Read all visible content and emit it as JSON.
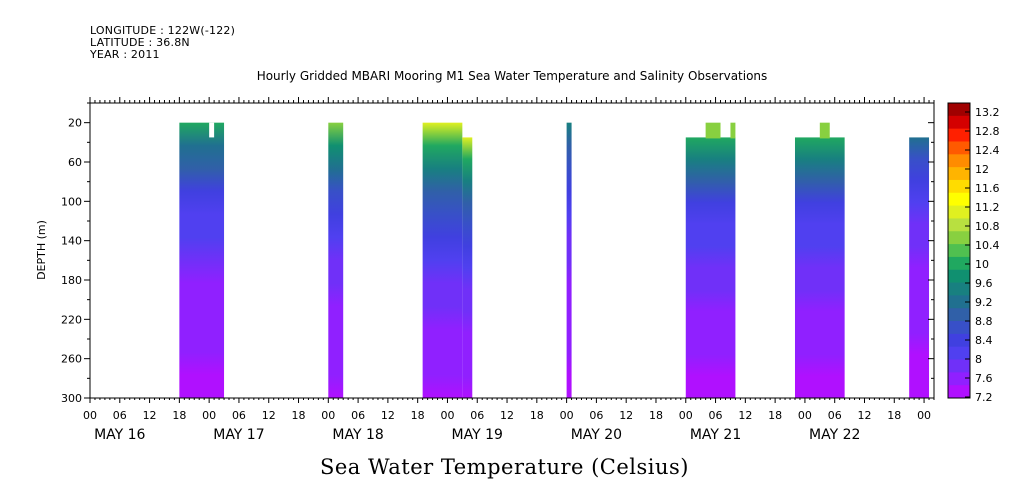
{
  "header": {
    "longitude": "LONGITUDE : 122W(-122)",
    "latitude": "LATITUDE : 36.8N",
    "year": "YEAR : 2011"
  },
  "chart_data": {
    "type": "heatmap",
    "title": "Hourly Gridded MBARI Mooring M1 Sea Water Temperature and Salinity Observations",
    "xlabel": "Sea Water Temperature (Celsius)",
    "ylabel": "DEPTH (m)",
    "xlim_hours": [
      0,
      170
    ],
    "ylim": [
      300,
      0
    ],
    "x_hour_ticks": [
      "00",
      "06",
      "12",
      "18",
      "00",
      "06",
      "12",
      "18",
      "00",
      "06",
      "12",
      "18",
      "00",
      "06",
      "12",
      "18",
      "00",
      "06",
      "12",
      "18",
      "00",
      "06",
      "12",
      "18",
      "00",
      "06",
      "12",
      "18",
      "00"
    ],
    "day_labels": [
      "MAY 16",
      "MAY 17",
      "MAY 18",
      "MAY 19",
      "MAY 20",
      "MAY 21",
      "MAY 22"
    ],
    "y_ticks": [
      "20",
      "60",
      "100",
      "140",
      "180",
      "220",
      "260",
      "300"
    ],
    "colorbar": {
      "levels": [
        "13.2",
        "12.8",
        "12.4",
        "12",
        "11.6",
        "11.2",
        "10.8",
        "10.4",
        "10",
        "9.6",
        "9.2",
        "8.8",
        "8.4",
        "8",
        "7.6",
        "7.2"
      ],
      "colors": [
        "#a00000",
        "#d40000",
        "#ff2000",
        "#ff5a00",
        "#ff8c00",
        "#ffb400",
        "#ffdc00",
        "#ffff00",
        "#e0f020",
        "#b8e040",
        "#88d040",
        "#50c050",
        "#20a860",
        "#109070",
        "#188080",
        "#207090",
        "#3060a8",
        "#3850c8",
        "#4040e0",
        "#5040f0",
        "#7030f8",
        "#9020ff",
        "#b010ff"
      ],
      "range": [
        7.2,
        13.4
      ]
    },
    "observation_blocks": [
      {
        "start_hour": 18,
        "end_hour": 27,
        "top_depth": 20,
        "notch": [
          24,
          25,
          35
        ],
        "surface_temp": 9.9
      },
      {
        "start_hour": 48,
        "end_hour": 51,
        "top_depth": 20,
        "surface_temp": 10.6
      },
      {
        "start_hour": 67,
        "end_hour": 77,
        "top_depth": 20,
        "step_after_hour": 75,
        "step_depth": 35,
        "surface_temp": 11.0
      },
      {
        "start_hour": 96,
        "end_hour": 97,
        "top_depth": 20,
        "surface_temp": 9.6
      },
      {
        "start_hour": 120,
        "end_hour": 130,
        "top_depth": 35,
        "raised": [
          [
            124,
            127,
            20
          ],
          [
            129,
            130,
            20
          ]
        ],
        "surface_temp": 10.0
      },
      {
        "start_hour": 142,
        "end_hour": 152,
        "top_depth": 35,
        "raised": [
          [
            147,
            149,
            20
          ]
        ],
        "surface_temp": 10.0
      },
      {
        "start_hour": 165,
        "end_hour": 169,
        "top_depth": 35,
        "surface_temp": 9.2
      }
    ]
  }
}
